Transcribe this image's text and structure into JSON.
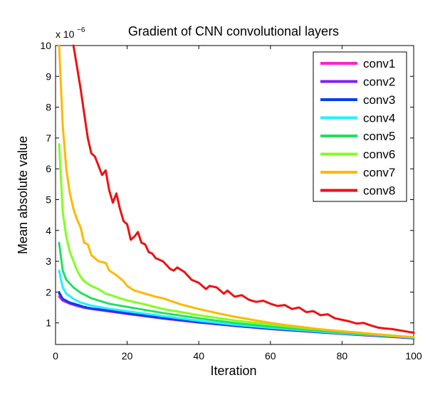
{
  "chart_data": {
    "type": "line",
    "title": "Gradient of CNN convolutional layers",
    "xlabel": "Iteration",
    "ylabel": "Mean absolute value",
    "xlim": [
      0,
      100
    ],
    "ylim": [
      0.3,
      10
    ],
    "xticks": [
      0,
      20,
      40,
      60,
      80,
      100
    ],
    "yticks": [
      1,
      2,
      3,
      4,
      5,
      6,
      7,
      8,
      9,
      10
    ],
    "y_multiplier": {
      "base": "x 10",
      "exponent": "−6"
    },
    "legend_position": "top-right",
    "grid": false,
    "series": [
      {
        "name": "conv1",
        "color": "#ff22cc",
        "points": [
          [
            1,
            1.85
          ],
          [
            2,
            1.72
          ],
          [
            4,
            1.62
          ],
          [
            6,
            1.55
          ],
          [
            8,
            1.49
          ],
          [
            10,
            1.45
          ],
          [
            15,
            1.37
          ],
          [
            20,
            1.29
          ],
          [
            30,
            1.14
          ],
          [
            40,
            1.01
          ],
          [
            50,
            0.9
          ],
          [
            60,
            0.8
          ],
          [
            70,
            0.72
          ],
          [
            80,
            0.64
          ],
          [
            90,
            0.57
          ],
          [
            100,
            0.5
          ]
        ]
      },
      {
        "name": "conv2",
        "color": "#8020f0",
        "points": [
          [
            1,
            1.95
          ],
          [
            2,
            1.75
          ],
          [
            4,
            1.64
          ],
          [
            6,
            1.57
          ],
          [
            8,
            1.5
          ],
          [
            10,
            1.46
          ],
          [
            15,
            1.38
          ],
          [
            20,
            1.3
          ],
          [
            30,
            1.15
          ],
          [
            40,
            1.02
          ],
          [
            50,
            0.91
          ],
          [
            60,
            0.81
          ],
          [
            70,
            0.73
          ],
          [
            80,
            0.65
          ],
          [
            90,
            0.58
          ],
          [
            100,
            0.51
          ]
        ]
      },
      {
        "name": "conv3",
        "color": "#0040f0",
        "points": [
          [
            1,
            2.0
          ],
          [
            2,
            1.78
          ],
          [
            4,
            1.66
          ],
          [
            6,
            1.59
          ],
          [
            8,
            1.52
          ],
          [
            10,
            1.47
          ],
          [
            15,
            1.4
          ],
          [
            20,
            1.31
          ],
          [
            30,
            1.16
          ],
          [
            40,
            1.03
          ],
          [
            50,
            0.91
          ],
          [
            60,
            0.81
          ],
          [
            70,
            0.73
          ],
          [
            80,
            0.65
          ],
          [
            90,
            0.58
          ],
          [
            100,
            0.5
          ]
        ]
      },
      {
        "name": "conv4",
        "color": "#20f0ff",
        "points": [
          [
            1,
            2.7
          ],
          [
            2,
            2.15
          ],
          [
            3,
            1.95
          ],
          [
            5,
            1.78
          ],
          [
            7,
            1.66
          ],
          [
            10,
            1.56
          ],
          [
            15,
            1.46
          ],
          [
            20,
            1.38
          ],
          [
            30,
            1.22
          ],
          [
            40,
            1.07
          ],
          [
            50,
            0.94
          ],
          [
            60,
            0.84
          ],
          [
            70,
            0.75
          ],
          [
            80,
            0.66
          ],
          [
            90,
            0.59
          ],
          [
            100,
            0.52
          ]
        ]
      },
      {
        "name": "conv5",
        "color": "#20e060",
        "points": [
          [
            1,
            3.6
          ],
          [
            2,
            2.7
          ],
          [
            3,
            2.4
          ],
          [
            5,
            2.15
          ],
          [
            7,
            1.98
          ],
          [
            10,
            1.8
          ],
          [
            15,
            1.62
          ],
          [
            20,
            1.52
          ],
          [
            30,
            1.32
          ],
          [
            40,
            1.15
          ],
          [
            50,
            1.0
          ],
          [
            60,
            0.88
          ],
          [
            70,
            0.78
          ],
          [
            80,
            0.69
          ],
          [
            90,
            0.6
          ],
          [
            100,
            0.53
          ]
        ]
      },
      {
        "name": "conv6",
        "color": "#80ff20",
        "points": [
          [
            1,
            6.8
          ],
          [
            2,
            4.6
          ],
          [
            3,
            3.8
          ],
          [
            4,
            3.3
          ],
          [
            5,
            3.0
          ],
          [
            6,
            2.7
          ],
          [
            7,
            2.5
          ],
          [
            8,
            2.35
          ],
          [
            10,
            2.2
          ],
          [
            12,
            2.1
          ],
          [
            14,
            1.95
          ],
          [
            16,
            1.88
          ],
          [
            18,
            1.8
          ],
          [
            20,
            1.73
          ],
          [
            25,
            1.6
          ],
          [
            30,
            1.45
          ],
          [
            35,
            1.35
          ],
          [
            40,
            1.25
          ],
          [
            50,
            1.08
          ],
          [
            60,
            0.95
          ],
          [
            70,
            0.83
          ],
          [
            80,
            0.73
          ],
          [
            90,
            0.63
          ],
          [
            100,
            0.54
          ]
        ]
      },
      {
        "name": "conv7",
        "color": "#ffb800",
        "points": [
          [
            1,
            10.0
          ],
          [
            2,
            7.4
          ],
          [
            3,
            6.0
          ],
          [
            4,
            5.2
          ],
          [
            5,
            4.7
          ],
          [
            6,
            4.35
          ],
          [
            7,
            4.1
          ],
          [
            8,
            3.6
          ],
          [
            9,
            3.55
          ],
          [
            10,
            3.2
          ],
          [
            12,
            3.0
          ],
          [
            14,
            2.95
          ],
          [
            15,
            2.7
          ],
          [
            17,
            2.55
          ],
          [
            19,
            2.35
          ],
          [
            20,
            2.2
          ],
          [
            22,
            2.05
          ],
          [
            25,
            1.95
          ],
          [
            28,
            1.85
          ],
          [
            30,
            1.8
          ],
          [
            35,
            1.6
          ],
          [
            40,
            1.45
          ],
          [
            45,
            1.32
          ],
          [
            50,
            1.2
          ],
          [
            55,
            1.1
          ],
          [
            60,
            1.0
          ],
          [
            65,
            0.92
          ],
          [
            70,
            0.85
          ],
          [
            75,
            0.78
          ],
          [
            80,
            0.72
          ],
          [
            85,
            0.68
          ],
          [
            90,
            0.62
          ],
          [
            95,
            0.57
          ],
          [
            100,
            0.53
          ]
        ]
      },
      {
        "name": "conv8",
        "color": "#ee1111",
        "points": [
          [
            5,
            10.0
          ],
          [
            6,
            9.3
          ],
          [
            7,
            8.6
          ],
          [
            8,
            7.8
          ],
          [
            9,
            7.0
          ],
          [
            10,
            6.5
          ],
          [
            11,
            6.4
          ],
          [
            12,
            6.1
          ],
          [
            13,
            5.8
          ],
          [
            14,
            5.95
          ],
          [
            15,
            5.3
          ],
          [
            16,
            4.9
          ],
          [
            17,
            5.2
          ],
          [
            18,
            4.7
          ],
          [
            19,
            4.3
          ],
          [
            20,
            4.2
          ],
          [
            21,
            3.7
          ],
          [
            22,
            3.8
          ],
          [
            23,
            3.95
          ],
          [
            24,
            3.6
          ],
          [
            25,
            3.55
          ],
          [
            26,
            3.3
          ],
          [
            27,
            3.25
          ],
          [
            28,
            3.1
          ],
          [
            30,
            3.0
          ],
          [
            32,
            2.75
          ],
          [
            33,
            2.7
          ],
          [
            34,
            2.8
          ],
          [
            36,
            2.65
          ],
          [
            38,
            2.4
          ],
          [
            40,
            2.3
          ],
          [
            42,
            2.1
          ],
          [
            43,
            2.2
          ],
          [
            45,
            2.15
          ],
          [
            47,
            1.95
          ],
          [
            48,
            2.05
          ],
          [
            50,
            1.85
          ],
          [
            52,
            1.9
          ],
          [
            54,
            1.75
          ],
          [
            56,
            1.68
          ],
          [
            58,
            1.72
          ],
          [
            60,
            1.62
          ],
          [
            62,
            1.55
          ],
          [
            64,
            1.58
          ],
          [
            66,
            1.45
          ],
          [
            68,
            1.5
          ],
          [
            70,
            1.35
          ],
          [
            72,
            1.38
          ],
          [
            74,
            1.25
          ],
          [
            76,
            1.28
          ],
          [
            78,
            1.15
          ],
          [
            80,
            1.1
          ],
          [
            82,
            1.05
          ],
          [
            84,
            0.98
          ],
          [
            86,
            1.0
          ],
          [
            88,
            0.92
          ],
          [
            90,
            0.85
          ],
          [
            92,
            0.82
          ],
          [
            94,
            0.8
          ],
          [
            96,
            0.76
          ],
          [
            98,
            0.72
          ],
          [
            100,
            0.68
          ]
        ]
      }
    ]
  }
}
